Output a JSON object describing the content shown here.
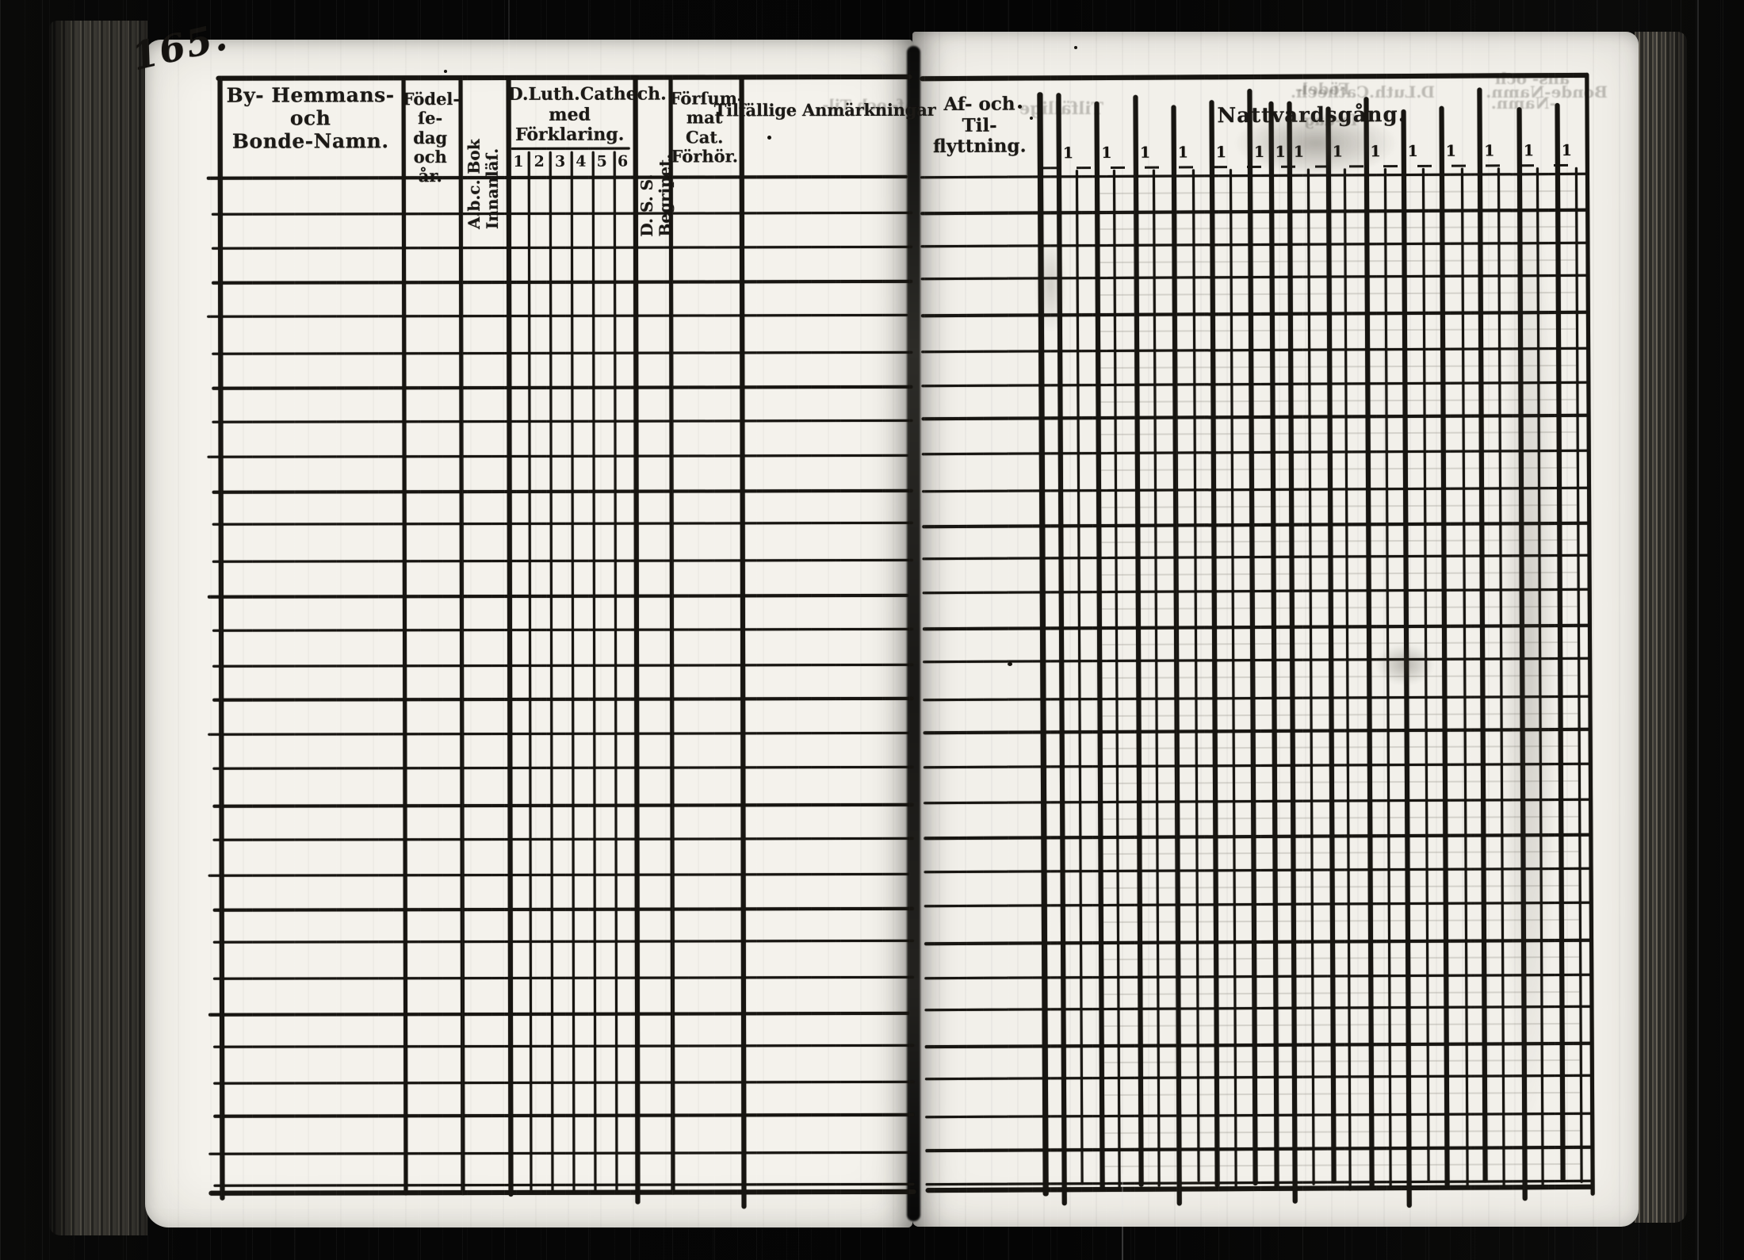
{
  "page_number": "165.",
  "left_page": {
    "columns": {
      "name": {
        "line1": "By- Hemmans- och",
        "line2": "Bonde-Namn."
      },
      "birth": {
        "line1": "Födel-",
        "line2": "ſe-dag",
        "line3": "och år."
      },
      "abc_reading": {
        "line1": "A.b.c. Bok",
        "line2": "Innanläſ."
      },
      "catechism": {
        "line1": "D.Luth.Cathech.",
        "line2": "med Förklaring.",
        "subcolumns": [
          "1",
          "2",
          "3",
          "4",
          "5",
          "6"
        ]
      },
      "understanding": {
        "line1": "D. S. S.",
        "line2": "Begripet."
      },
      "missed_exam": {
        "line1": "Förſum-",
        "line2": "mat Cat.",
        "line3": "Förhör."
      },
      "remarks": {
        "label": "Tilfällige Anmärkningar"
      }
    }
  },
  "right_page": {
    "columns": {
      "migration": {
        "line1": "Af- och Til-",
        "line2": "flyttning."
      },
      "communion": {
        "label": "Nattvardsgång.",
        "column_tick": "1"
      }
    }
  },
  "bleedthrough_text": [
    "Af- och Til-",
    "Tilfällige",
    "Födel-",
    "D.Luth.Cathech.",
    "ans- och",
    "Bonde-Namn.",
    "-Namn.",
    "ſe-dag"
  ],
  "colors": {
    "paper": "#f4f2ec",
    "ink": "#171511",
    "film_black": "#070707",
    "book_edge": "#4d4a42"
  }
}
